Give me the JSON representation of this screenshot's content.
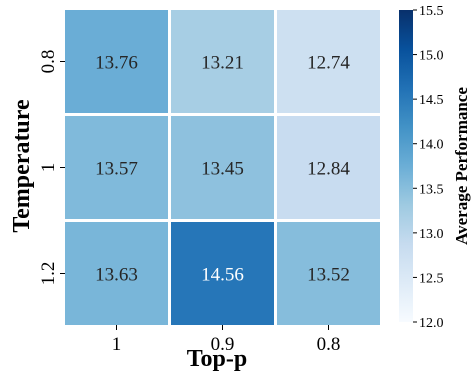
{
  "chart_data": {
    "type": "heatmap",
    "title": "",
    "xlabel": "Top-p",
    "ylabel": "Temperature",
    "x_categories": [
      "1",
      "0.9",
      "0.8"
    ],
    "y_categories": [
      "0.8",
      "1",
      "1.2"
    ],
    "values": [
      [
        13.76,
        13.21,
        12.74
      ],
      [
        13.57,
        13.45,
        12.84
      ],
      [
        13.63,
        14.56,
        13.52
      ]
    ],
    "value_labels": [
      [
        "13.76",
        "13.21",
        "12.74"
      ],
      [
        "13.57",
        "13.45",
        "12.84"
      ],
      [
        "13.63",
        "14.56",
        "13.52"
      ]
    ],
    "colorbar": {
      "label": "Average Performance",
      "range": [
        12.0,
        15.5
      ],
      "ticks": [
        "12.0",
        "12.5",
        "13.0",
        "13.5",
        "14.0",
        "14.5",
        "15.0",
        "15.5"
      ],
      "colormap": "Blues",
      "colors": [
        "#f7fbff",
        "#deebf7",
        "#c6dbef",
        "#9ecae1",
        "#6baed6",
        "#4292c6",
        "#2171b5",
        "#08519c",
        "#08306b"
      ]
    },
    "grid": false,
    "cell_border_color": "#ffffff"
  }
}
